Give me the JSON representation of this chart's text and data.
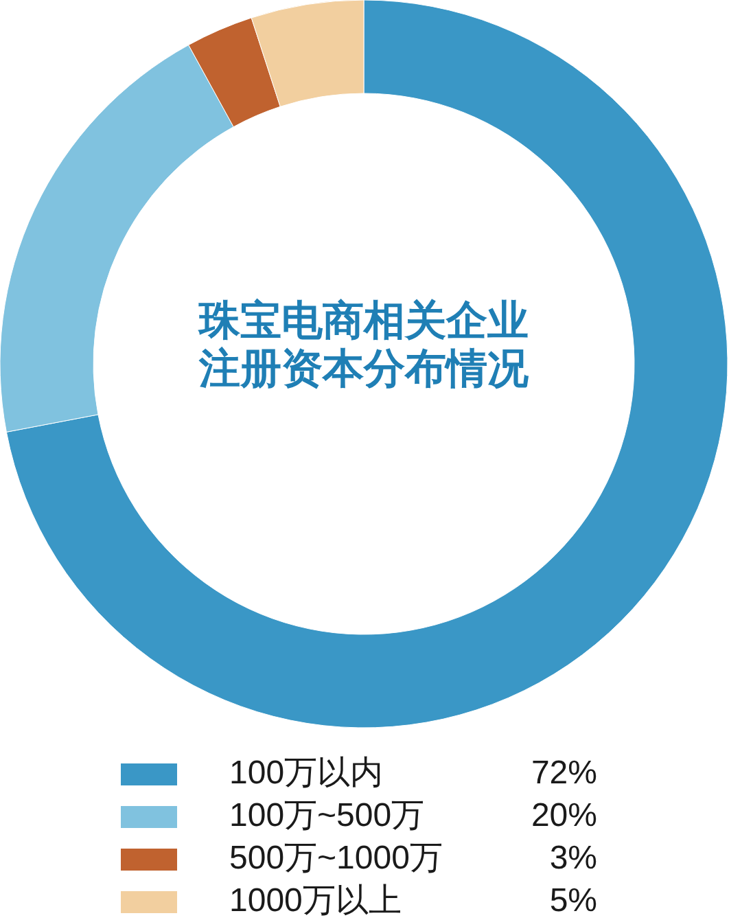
{
  "chart_data": {
    "type": "donut",
    "title": "珠宝电商相关企业注册资本分布情况",
    "categories": [
      "100万以内",
      "100万~500万",
      "500万~1000万",
      "1000万以上"
    ],
    "values": [
      72,
      20,
      3,
      5
    ],
    "colors": [
      "#3a97c6",
      "#80c2df",
      "#c0622f",
      "#f2cf9f"
    ],
    "value_labels": [
      "72%",
      "20%",
      "3%",
      "5%"
    ],
    "legend": "bottom"
  }
}
